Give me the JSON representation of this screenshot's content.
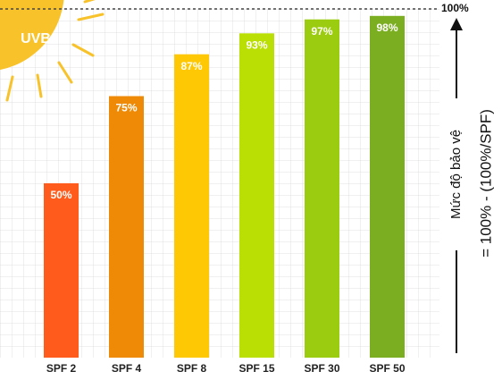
{
  "chart_data": {
    "type": "bar",
    "categories": [
      "SPF 2",
      "SPF 4",
      "SPF 8",
      "SPF 15",
      "SPF 30",
      "SPF 50"
    ],
    "values": [
      50,
      75,
      87,
      93,
      97,
      98
    ],
    "value_labels": [
      "50%",
      "75%",
      "87%",
      "93%",
      "97%",
      "98%"
    ],
    "colors": [
      "#ff5b1c",
      "#ef8a06",
      "#ffc805",
      "#b9df05",
      "#9ccc10",
      "#7cae22"
    ],
    "ylim": [
      0,
      100
    ],
    "yticks": [
      {
        "value": 100,
        "label": "100%"
      }
    ],
    "annotations": {
      "sun": "UVB",
      "axis_title": "Mức độ bảo vệ",
      "formula": "= 100% - (100%/SPF)"
    }
  }
}
